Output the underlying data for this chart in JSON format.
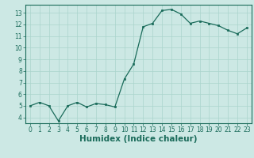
{
  "x": [
    0,
    1,
    2,
    3,
    4,
    5,
    6,
    7,
    8,
    9,
    10,
    11,
    12,
    13,
    14,
    15,
    16,
    17,
    18,
    19,
    20,
    21,
    22,
    23
  ],
  "y": [
    5.0,
    5.3,
    5.0,
    3.7,
    5.0,
    5.3,
    4.9,
    5.2,
    5.1,
    4.9,
    7.3,
    8.6,
    11.8,
    12.1,
    13.2,
    13.3,
    12.9,
    12.1,
    12.3,
    12.1,
    11.9,
    11.5,
    11.2,
    11.7
  ],
  "xlabel": "Humidex (Indice chaleur)",
  "bg_color": "#cce8e4",
  "line_color": "#1a6b5a",
  "grid_color": "#aad4cc",
  "ylim": [
    3.5,
    13.7
  ],
  "yticks": [
    4,
    5,
    6,
    7,
    8,
    9,
    10,
    11,
    12,
    13
  ],
  "xticks": [
    0,
    1,
    2,
    3,
    4,
    5,
    6,
    7,
    8,
    9,
    10,
    11,
    12,
    13,
    14,
    15,
    16,
    17,
    18,
    19,
    20,
    21,
    22,
    23
  ],
  "tick_fontsize": 5.5,
  "xlabel_fontsize": 7.5,
  "marker_size": 2.0,
  "line_width": 0.9
}
